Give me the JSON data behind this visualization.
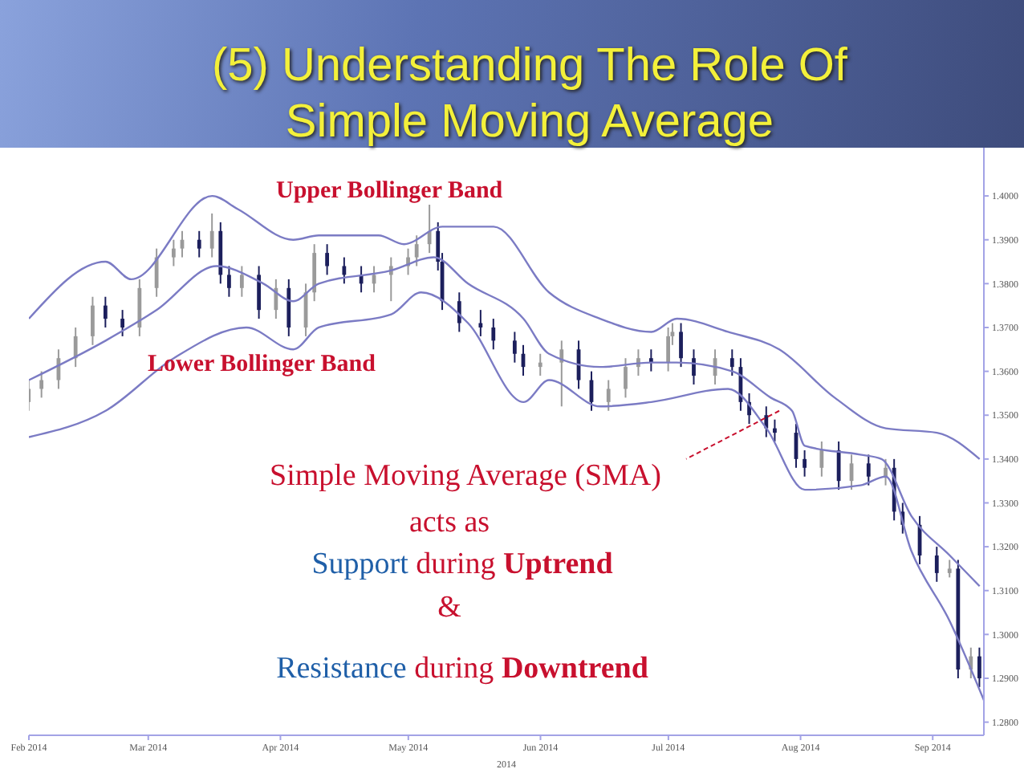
{
  "chart_data": {
    "type": "candlestick",
    "title": "(5) Understanding The Role Of Simple Moving Average",
    "xlabel": "2014",
    "x": [
      "2014-02-01",
      "2014-02-04",
      "2014-02-08",
      "2014-02-12",
      "2014-02-16",
      "2014-02-19",
      "2014-02-23",
      "2014-02-27",
      "2014-03-03",
      "2014-03-07",
      "2014-03-09",
      "2014-03-13",
      "2014-03-16",
      "2014-03-18",
      "2014-03-20",
      "2014-03-23",
      "2014-03-27",
      "2014-03-31",
      "2014-04-03",
      "2014-04-07",
      "2014-04-09",
      "2014-04-12",
      "2014-04-16",
      "2014-04-20",
      "2014-04-23",
      "2014-04-27",
      "2014-05-01",
      "2014-05-03",
      "2014-05-06",
      "2014-05-08",
      "2014-05-09",
      "2014-05-13",
      "2014-05-18",
      "2014-05-21",
      "2014-05-26",
      "2014-05-28",
      "2014-06-01",
      "2014-06-06",
      "2014-06-10",
      "2014-06-13",
      "2014-06-17",
      "2014-06-21",
      "2014-06-24",
      "2014-06-27",
      "2014-07-01",
      "2014-07-02",
      "2014-07-04",
      "2014-07-07",
      "2014-07-12",
      "2014-07-16",
      "2014-07-18",
      "2014-07-20",
      "2014-07-24",
      "2014-07-26",
      "2014-07-31",
      "2014-08-02",
      "2014-08-06",
      "2014-08-10",
      "2014-08-13",
      "2014-08-17",
      "2014-08-21",
      "2014-08-23",
      "2014-08-25",
      "2014-08-29",
      "2014-09-02",
      "2014-09-05",
      "2014-09-07",
      "2014-09-10",
      "2014-09-12"
    ],
    "ohlc": [
      [
        1.353,
        1.358,
        1.351,
        1.356
      ],
      [
        1.356,
        1.36,
        1.354,
        1.358
      ],
      [
        1.358,
        1.365,
        1.356,
        1.363
      ],
      [
        1.363,
        1.37,
        1.361,
        1.368
      ],
      [
        1.368,
        1.377,
        1.366,
        1.375
      ],
      [
        1.375,
        1.377,
        1.37,
        1.372
      ],
      [
        1.372,
        1.374,
        1.368,
        1.37
      ],
      [
        1.37,
        1.381,
        1.368,
        1.379
      ],
      [
        1.379,
        1.388,
        1.377,
        1.386
      ],
      [
        1.386,
        1.39,
        1.384,
        1.388
      ],
      [
        1.388,
        1.392,
        1.386,
        1.39
      ],
      [
        1.39,
        1.392,
        1.386,
        1.388
      ],
      [
        1.388,
        1.396,
        1.386,
        1.392
      ],
      [
        1.392,
        1.394,
        1.38,
        1.382
      ],
      [
        1.382,
        1.384,
        1.377,
        1.379
      ],
      [
        1.379,
        1.384,
        1.377,
        1.382
      ],
      [
        1.382,
        1.384,
        1.372,
        1.374
      ],
      [
        1.374,
        1.381,
        1.372,
        1.379
      ],
      [
        1.379,
        1.381,
        1.368,
        1.37
      ],
      [
        1.37,
        1.38,
        1.368,
        1.378
      ],
      [
        1.378,
        1.389,
        1.376,
        1.387
      ],
      [
        1.387,
        1.389,
        1.382,
        1.384
      ],
      [
        1.384,
        1.386,
        1.38,
        1.382
      ],
      [
        1.382,
        1.384,
        1.378,
        1.38
      ],
      [
        1.38,
        1.384,
        1.378,
        1.382
      ],
      [
        1.382,
        1.386,
        1.376,
        1.384
      ],
      [
        1.384,
        1.388,
        1.382,
        1.386
      ],
      [
        1.386,
        1.391,
        1.384,
        1.389
      ],
      [
        1.389,
        1.398,
        1.387,
        1.392
      ],
      [
        1.392,
        1.394,
        1.383,
        1.385
      ],
      [
        1.385,
        1.387,
        1.374,
        1.376
      ],
      [
        1.376,
        1.378,
        1.369,
        1.371
      ],
      [
        1.371,
        1.374,
        1.368,
        1.37
      ],
      [
        1.37,
        1.372,
        1.365,
        1.367
      ],
      [
        1.367,
        1.369,
        1.362,
        1.364
      ],
      [
        1.364,
        1.366,
        1.359,
        1.361
      ],
      [
        1.361,
        1.364,
        1.359,
        1.362
      ],
      [
        1.362,
        1.367,
        1.352,
        1.365
      ],
      [
        1.365,
        1.367,
        1.356,
        1.358
      ],
      [
        1.358,
        1.36,
        1.351,
        1.353
      ],
      [
        1.353,
        1.358,
        1.351,
        1.356
      ],
      [
        1.356,
        1.363,
        1.354,
        1.361
      ],
      [
        1.361,
        1.365,
        1.359,
        1.363
      ],
      [
        1.363,
        1.365,
        1.36,
        1.362
      ],
      [
        1.362,
        1.37,
        1.36,
        1.368
      ],
      [
        1.368,
        1.371,
        1.366,
        1.369
      ],
      [
        1.369,
        1.371,
        1.361,
        1.363
      ],
      [
        1.363,
        1.365,
        1.357,
        1.359
      ],
      [
        1.359,
        1.365,
        1.357,
        1.363
      ],
      [
        1.363,
        1.365,
        1.359,
        1.361
      ],
      [
        1.361,
        1.363,
        1.351,
        1.353
      ],
      [
        1.353,
        1.355,
        1.348,
        1.35
      ],
      [
        1.35,
        1.352,
        1.345,
        1.347
      ],
      [
        1.347,
        1.349,
        1.344,
        1.346
      ],
      [
        1.346,
        1.348,
        1.338,
        1.34
      ],
      [
        1.34,
        1.342,
        1.336,
        1.338
      ],
      [
        1.338,
        1.344,
        1.336,
        1.342
      ],
      [
        1.342,
        1.344,
        1.333,
        1.335
      ],
      [
        1.335,
        1.341,
        1.333,
        1.339
      ],
      [
        1.339,
        1.341,
        1.334,
        1.336
      ],
      [
        1.336,
        1.34,
        1.334,
        1.338
      ],
      [
        1.338,
        1.34,
        1.326,
        1.328
      ],
      [
        1.328,
        1.33,
        1.323,
        1.325
      ],
      [
        1.325,
        1.327,
        1.316,
        1.318
      ],
      [
        1.318,
        1.32,
        1.312,
        1.314
      ],
      [
        1.314,
        1.317,
        1.313,
        1.315
      ],
      [
        1.315,
        1.317,
        1.29,
        1.292
      ],
      [
        1.292,
        1.297,
        1.29,
        1.295
      ],
      [
        1.295,
        1.297,
        1.288,
        1.29
      ]
    ],
    "colors": [
      "#9a9a9a",
      "#9a9a9a",
      "#9a9a9a",
      "#9a9a9a",
      "#9a9a9a",
      "#1c1f5c",
      "#1c1f5c",
      "#9a9a9a",
      "#9a9a9a",
      "#9a9a9a",
      "#9a9a9a",
      "#1c1f5c",
      "#9a9a9a",
      "#1c1f5c",
      "#1c1f5c",
      "#9a9a9a",
      "#1c1f5c",
      "#9a9a9a",
      "#1c1f5c",
      "#9a9a9a",
      "#9a9a9a",
      "#1c1f5c",
      "#1c1f5c",
      "#1c1f5c",
      "#9a9a9a",
      "#9a9a9a",
      "#9a9a9a",
      "#9a9a9a",
      "#9a9a9a",
      "#1c1f5c",
      "#1c1f5c",
      "#1c1f5c",
      "#1c1f5c",
      "#1c1f5c",
      "#1c1f5c",
      "#1c1f5c",
      "#9a9a9a",
      "#9a9a9a",
      "#1c1f5c",
      "#1c1f5c",
      "#9a9a9a",
      "#9a9a9a",
      "#9a9a9a",
      "#1c1f5c",
      "#9a9a9a",
      "#9a9a9a",
      "#1c1f5c",
      "#1c1f5c",
      "#9a9a9a",
      "#1c1f5c",
      "#1c1f5c",
      "#1c1f5c",
      "#1c1f5c",
      "#1c1f5c",
      "#1c1f5c",
      "#1c1f5c",
      "#9a9a9a",
      "#1c1f5c",
      "#9a9a9a",
      "#1c1f5c",
      "#9a9a9a",
      "#1c1f5c",
      "#1c1f5c",
      "#1c1f5c",
      "#1c1f5c",
      "#9a9a9a",
      "#1c1f5c",
      "#9a9a9a",
      "#1c1f5c"
    ],
    "series": [
      {
        "type": "line",
        "color": "#7b7bc4",
        "x": [
          "2014-02-01",
          "2014-02-19",
          "2014-02-25",
          "2014-03-16",
          "2014-03-22",
          "2014-04-04",
          "2014-04-10",
          "2014-04-24",
          "2014-04-30",
          "2014-05-09",
          "2014-05-21",
          "2014-06-03",
          "2014-06-15",
          "2014-06-27",
          "2014-07-03",
          "2014-07-15",
          "2014-07-27",
          "2014-08-09",
          "2014-08-21",
          "2014-09-02",
          "2014-09-12"
        ],
        "values": [
          1.372,
          1.385,
          1.381,
          1.4,
          1.397,
          1.39,
          1.391,
          1.391,
          1.389,
          1.393,
          1.393,
          1.378,
          1.372,
          1.369,
          1.372,
          1.369,
          1.365,
          1.354,
          1.347,
          1.346,
          1.34
        ]
      },
      {
        "type": "line",
        "color": "#7b7bc4",
        "x": [
          "2014-02-01",
          "2014-02-19",
          "2014-03-03",
          "2014-03-17",
          "2014-03-28",
          "2014-04-04",
          "2014-04-10",
          "2014-04-27",
          "2014-05-07",
          "2014-05-15",
          "2014-05-28",
          "2014-06-03",
          "2014-06-15",
          "2014-06-27",
          "2014-07-03",
          "2014-07-16",
          "2014-07-25",
          "2014-07-30",
          "2014-08-02",
          "2014-08-15",
          "2014-08-20",
          "2014-08-27",
          "2014-09-05",
          "2014-09-12"
        ],
        "values": [
          1.358,
          1.367,
          1.374,
          1.384,
          1.38,
          1.376,
          1.38,
          1.383,
          1.386,
          1.38,
          1.372,
          1.364,
          1.361,
          1.362,
          1.362,
          1.36,
          1.354,
          1.351,
          1.343,
          1.341,
          1.34,
          1.327,
          1.318,
          1.311
        ]
      },
      {
        "type": "line",
        "color": "#7b7bc4",
        "x": [
          "2014-02-01",
          "2014-02-19",
          "2014-03-07",
          "2014-03-24",
          "2014-04-04",
          "2014-04-10",
          "2014-04-27",
          "2014-05-04",
          "2014-05-15",
          "2014-05-28",
          "2014-06-03",
          "2014-06-15",
          "2014-06-27",
          "2014-07-15",
          "2014-07-24",
          "2014-08-02",
          "2014-08-15",
          "2014-08-21",
          "2014-08-27",
          "2014-09-05",
          "2014-09-13"
        ],
        "values": [
          1.345,
          1.351,
          1.363,
          1.37,
          1.365,
          1.37,
          1.373,
          1.378,
          1.371,
          1.353,
          1.358,
          1.352,
          1.353,
          1.356,
          1.347,
          1.333,
          1.334,
          1.336,
          1.319,
          1.303,
          1.285
        ]
      }
    ],
    "xlim": [
      "2014-02-01",
      "2014-09-13"
    ],
    "xticks": [
      {
        "value": "2014-02-01",
        "label": "Feb 2014"
      },
      {
        "value": "2014-03-01",
        "label": "Mar 2014"
      },
      {
        "value": "2014-04-01",
        "label": "Apr 2014"
      },
      {
        "value": "2014-05-01",
        "label": "May 2014"
      },
      {
        "value": "2014-06-01",
        "label": "Jun 2014"
      },
      {
        "value": "2014-07-01",
        "label": "Jul 2014"
      },
      {
        "value": "2014-08-01",
        "label": "Aug 2014"
      },
      {
        "value": "2014-09-01",
        "label": "Sep 2014"
      }
    ],
    "ylim": [
      1.277,
      1.411
    ],
    "yticks": [
      {
        "value": 1.4,
        "label": "1.4000"
      },
      {
        "value": 1.39,
        "label": "1.3900"
      },
      {
        "value": 1.38,
        "label": "1.3800"
      },
      {
        "value": 1.37,
        "label": "1.3700"
      },
      {
        "value": 1.36,
        "label": "1.3600"
      },
      {
        "value": 1.35,
        "label": "1.3500"
      },
      {
        "value": 1.34,
        "label": "1.3400"
      },
      {
        "value": 1.33,
        "label": "1.3300"
      },
      {
        "value": 1.32,
        "label": "1.3200"
      },
      {
        "value": 1.31,
        "label": "1.3100"
      },
      {
        "value": 1.3,
        "label": "1.3000"
      },
      {
        "value": 1.29,
        "label": "1.2900"
      },
      {
        "value": 1.28,
        "label": "1.2800"
      }
    ],
    "annotations": [
      "Upper Bollinger Band",
      "Lower Bollinger Band",
      {
        "text": "Simple Moving Average (SMA)",
        "x": "2014-07-27",
        "y": 1.351
      },
      "acts as",
      "Support during Uptrend",
      "&",
      "Resistance during Downtrend"
    ]
  }
}
